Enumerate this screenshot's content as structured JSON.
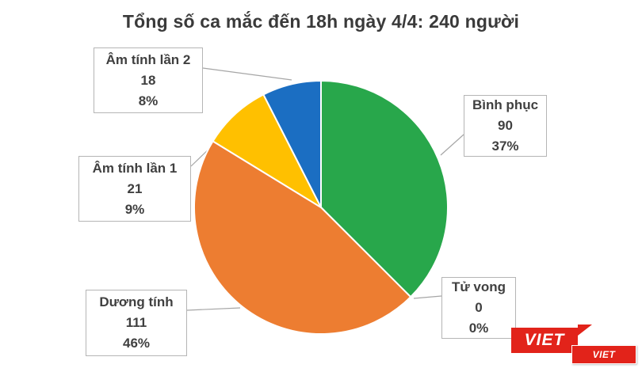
{
  "chart_data": {
    "type": "pie",
    "title": "Tổng số ca mắc đến 18h ngày 4/4: 240 người",
    "total": 240,
    "direction": "clockwise",
    "start": "top",
    "legend_position": "none",
    "slices": [
      {
        "id": "binh-phuc",
        "label": "Bình phục",
        "value": 90,
        "percent_label": "37%",
        "color": "#28a74b"
      },
      {
        "id": "tu-vong",
        "label": "Tử vong",
        "value": 0,
        "percent_label": "0%",
        "color": "#999999"
      },
      {
        "id": "duong-tinh",
        "label": "Dương tính",
        "value": 111,
        "percent_label": "46%",
        "color": "#ed7d31"
      },
      {
        "id": "am-tinh-lan-1",
        "label": "Âm tính lần 1",
        "value": 21,
        "percent_label": "9%",
        "color": "#ffc000"
      },
      {
        "id": "am-tinh-lan-2",
        "label": "Âm tính lần 2",
        "value": 18,
        "percent_label": "8%",
        "color": "#1b6ec2"
      }
    ]
  },
  "watermark": {
    "big": "VIET",
    "small": "VIET"
  }
}
